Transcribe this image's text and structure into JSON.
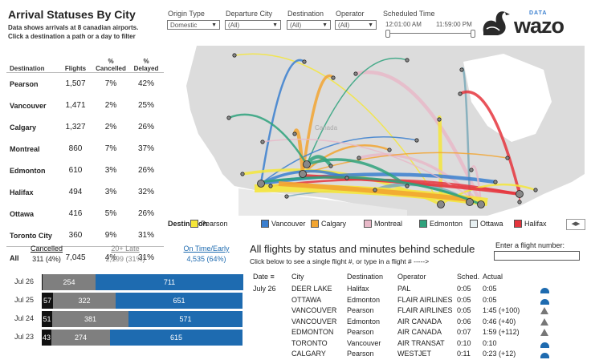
{
  "header": {
    "title": "Arrival Statuses By City",
    "subtitle_line1": "Data shows arrivals at 8 canadian airports.",
    "subtitle_line2": "Click a destination a path or a day to filter"
  },
  "filters": {
    "origin_type": {
      "label": "Origin Type",
      "value": "Domestic"
    },
    "departure_city": {
      "label": "Departure City",
      "value": "(All)"
    },
    "destination": {
      "label": "Destination",
      "value": "(All)"
    },
    "operator": {
      "label": "Operator",
      "value": "(All)"
    },
    "scheduled_time": {
      "label": "Scheduled Time",
      "start": "12:01:00 AM",
      "end": "11:59:00 PM"
    }
  },
  "logo": {
    "small": "DATA",
    "big": "wazo"
  },
  "table": {
    "headers": {
      "destination": "Destination",
      "flights": "Flights",
      "cancelled_top": "%",
      "cancelled_bottom": "Cancelled",
      "delayed_top": "%",
      "delayed_bottom": "Delayed"
    },
    "rows": [
      {
        "dest": "Pearson",
        "flights": "1,507",
        "cancelled": "7%",
        "delayed": "42%"
      },
      {
        "dest": "Vancouver",
        "flights": "1,471",
        "cancelled": "2%",
        "delayed": "25%"
      },
      {
        "dest": "Calgary",
        "flights": "1,327",
        "cancelled": "2%",
        "delayed": "26%"
      },
      {
        "dest": "Montreal",
        "flights": "860",
        "cancelled": "7%",
        "delayed": "37%"
      },
      {
        "dest": "Edmonton",
        "flights": "610",
        "cancelled": "3%",
        "delayed": "26%"
      },
      {
        "dest": "Halifax",
        "flights": "494",
        "cancelled": "3%",
        "delayed": "32%"
      },
      {
        "dest": "Ottawa",
        "flights": "416",
        "cancelled": "5%",
        "delayed": "26%"
      },
      {
        "dest": "Toronto City",
        "flights": "360",
        "cancelled": "9%",
        "delayed": "31%"
      }
    ],
    "total": {
      "dest": "All",
      "flights": "7,045",
      "cancelled": "4%",
      "delayed": "31%"
    }
  },
  "map": {
    "place_label": "Canada"
  },
  "legend": {
    "title": "Destination",
    "items": [
      {
        "name": "Pearson",
        "color": "#f5e63a"
      },
      {
        "name": "Vancouver",
        "color": "#3a7fcf"
      },
      {
        "name": "Calgary",
        "color": "#f2a531"
      },
      {
        "name": "Montreal",
        "color": "#e8b9c8"
      },
      {
        "name": "Edmonton",
        "color": "#2ea27c"
      },
      {
        "name": "Ottawa",
        "color": "#e7f0f2"
      },
      {
        "name": "Halifax",
        "color": "#e5353d"
      }
    ]
  },
  "status_summary": {
    "cancelled": {
      "label": "Cancelled",
      "value": "311 (4%)"
    },
    "late": {
      "label": "20+ Late",
      "value": "2,199 (31%)"
    },
    "ontime": {
      "label": "On Time/Early",
      "value": "4,535 (64%)"
    }
  },
  "daily_bars": [
    {
      "date": "Jul 26",
      "cancelled": "",
      "late": "254",
      "ontime": "711",
      "cancelled_n": 3,
      "late_n": 254,
      "ontime_n": 711
    },
    {
      "date": "Jul 25",
      "cancelled": "57",
      "late": "322",
      "ontime": "651",
      "cancelled_n": 57,
      "late_n": 322,
      "ontime_n": 651
    },
    {
      "date": "Jul 24",
      "cancelled": "51",
      "late": "381",
      "ontime": "571",
      "cancelled_n": 51,
      "late_n": 381,
      "ontime_n": 571
    },
    {
      "date": "Jul 23",
      "cancelled": "43",
      "late": "274",
      "ontime": "615",
      "cancelled_n": 43,
      "late_n": 274,
      "ontime_n": 615
    }
  ],
  "flights": {
    "title": "All flights by status and minutes behind schedule",
    "subtitle": "Click below to see a single flight #, or type in a flight # ----->",
    "input_label": "Enter a flight number:",
    "headers": {
      "date": "Date",
      "city": "City",
      "destination": "Destination",
      "operator": "Operator",
      "sched": "Sched.",
      "actual": "Actual"
    },
    "date": "July 26",
    "rows": [
      {
        "city": "DEER LAKE",
        "destination": "Halifax",
        "operator": "PAL",
        "sched": "0:05",
        "actual": "0:05",
        "status": "ontime"
      },
      {
        "city": "OTTAWA",
        "destination": "Edmonton",
        "operator": "FLAIR AIRLINES",
        "sched": "0:05",
        "actual": "0:05",
        "status": "ontime"
      },
      {
        "city": "VANCOUVER",
        "destination": "Pearson",
        "operator": "FLAIR AIRLINES",
        "sched": "0:05",
        "actual": "1:45 (+100)",
        "status": "late"
      },
      {
        "city": "VANCOUVER",
        "destination": "Edmonton",
        "operator": "AIR CANADA",
        "sched": "0:06",
        "actual": "0:46 (+40)",
        "status": "late"
      },
      {
        "city": "EDMONTON",
        "destination": "Pearson",
        "operator": "AIR CANADA",
        "sched": "0:07",
        "actual": "1:59 (+112)",
        "status": "late"
      },
      {
        "city": "TORONTO",
        "destination": "Vancouver",
        "operator": "AIR TRANSAT",
        "sched": "0:10",
        "actual": "0:10",
        "status": "ontime"
      },
      {
        "city": "CALGARY",
        "destination": "Pearson",
        "operator": "WESTJET",
        "sched": "0:11",
        "actual": "0:23 (+12)",
        "status": "ontime"
      }
    ]
  },
  "colors": {
    "cancelled": "#111111",
    "late": "#7f7f7f",
    "ontime": "#1e6bb0",
    "status_icon_ontime": "#1e6bb0",
    "status_icon_late": "#777777"
  }
}
